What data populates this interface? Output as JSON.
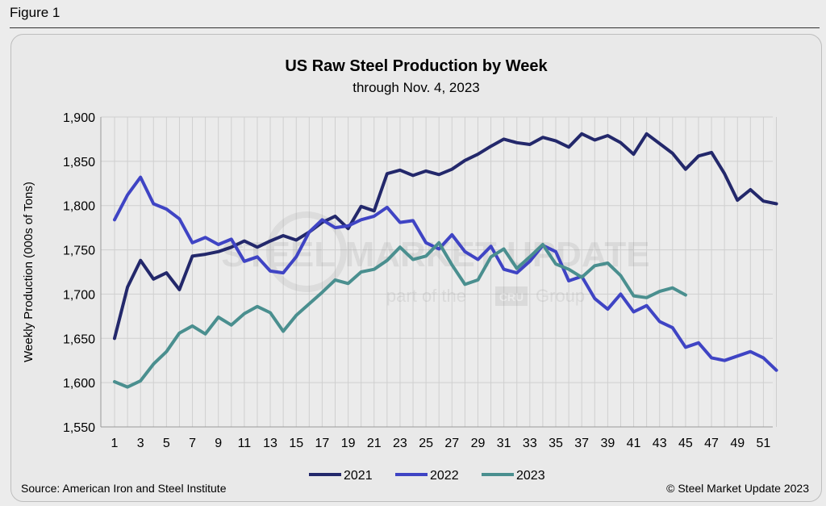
{
  "figure_label": "Figure 1",
  "source": "Source: American Iron and Steel Institute",
  "copyright": "© Steel Market Update 2023",
  "watermark": {
    "line1": "STEEL MARKET UPDATE",
    "line2a": "part of the",
    "line2b": "CRU",
    "line2c": "Group"
  },
  "colors": {
    "2021": "#23286b",
    "2022": "#3f44c4",
    "2023": "#4a8f8f",
    "grid": "#cfcfcf",
    "plot_bg": "#ebebeb"
  },
  "chart_data": {
    "type": "line",
    "title": "US Raw Steel Production by Week",
    "subtitle": "through Nov. 4, 2023",
    "xlabel": "",
    "ylabel": "Weekly Production (000s of Tons)",
    "xlim": [
      1,
      52
    ],
    "ylim": [
      1550,
      1900
    ],
    "yticks": [
      1550,
      1600,
      1650,
      1700,
      1750,
      1800,
      1850,
      1900
    ],
    "ytick_labels": [
      "1,550",
      "1,600",
      "1,650",
      "1,700",
      "1,750",
      "1,800",
      "1,850",
      "1,900"
    ],
    "xticks": [
      1,
      3,
      5,
      7,
      9,
      11,
      13,
      15,
      17,
      19,
      21,
      23,
      25,
      27,
      29,
      31,
      33,
      35,
      37,
      39,
      41,
      43,
      45,
      47,
      49,
      51
    ],
    "grid": true,
    "legend_position": "bottom",
    "series": [
      {
        "name": "2021",
        "values": [
          1650,
          1708,
          1738,
          1717,
          1724,
          1705,
          1743,
          1745,
          1748,
          1753,
          1760,
          1753,
          1760,
          1766,
          1761,
          1770,
          1781,
          1788,
          1774,
          1799,
          1794,
          1836,
          1840,
          1834,
          1839,
          1835,
          1841,
          1851,
          1858,
          1867,
          1875,
          1871,
          1869,
          1877,
          1873,
          1866,
          1881,
          1874,
          1879,
          1871,
          1858,
          1881,
          1870,
          1859,
          1841,
          1856,
          1860,
          1836,
          1806,
          1818,
          1805,
          1802
        ]
      },
      {
        "name": "2022",
        "values": [
          1784,
          1812,
          1832,
          1802,
          1796,
          1785,
          1758,
          1764,
          1756,
          1762,
          1737,
          1742,
          1726,
          1724,
          1742,
          1770,
          1784,
          1775,
          1777,
          1784,
          1788,
          1798,
          1781,
          1783,
          1758,
          1751,
          1767,
          1748,
          1739,
          1754,
          1728,
          1724,
          1737,
          1755,
          1748,
          1715,
          1720,
          1695,
          1683,
          1700,
          1680,
          1687,
          1669,
          1662,
          1640,
          1645,
          1628,
          1625,
          1630,
          1635,
          1628,
          1614
        ]
      },
      {
        "name": "2023",
        "values": [
          1601,
          1595,
          1602,
          1621,
          1635,
          1656,
          1664,
          1655,
          1674,
          1665,
          1678,
          1686,
          1679,
          1658,
          1676,
          1689,
          1702,
          1716,
          1712,
          1725,
          1728,
          1738,
          1753,
          1739,
          1743,
          1758,
          1733,
          1711,
          1716,
          1742,
          1751,
          1729,
          1742,
          1756,
          1734,
          1728,
          1719,
          1732,
          1735,
          1721,
          1698,
          1696,
          1703,
          1707,
          1699
        ]
      }
    ]
  }
}
